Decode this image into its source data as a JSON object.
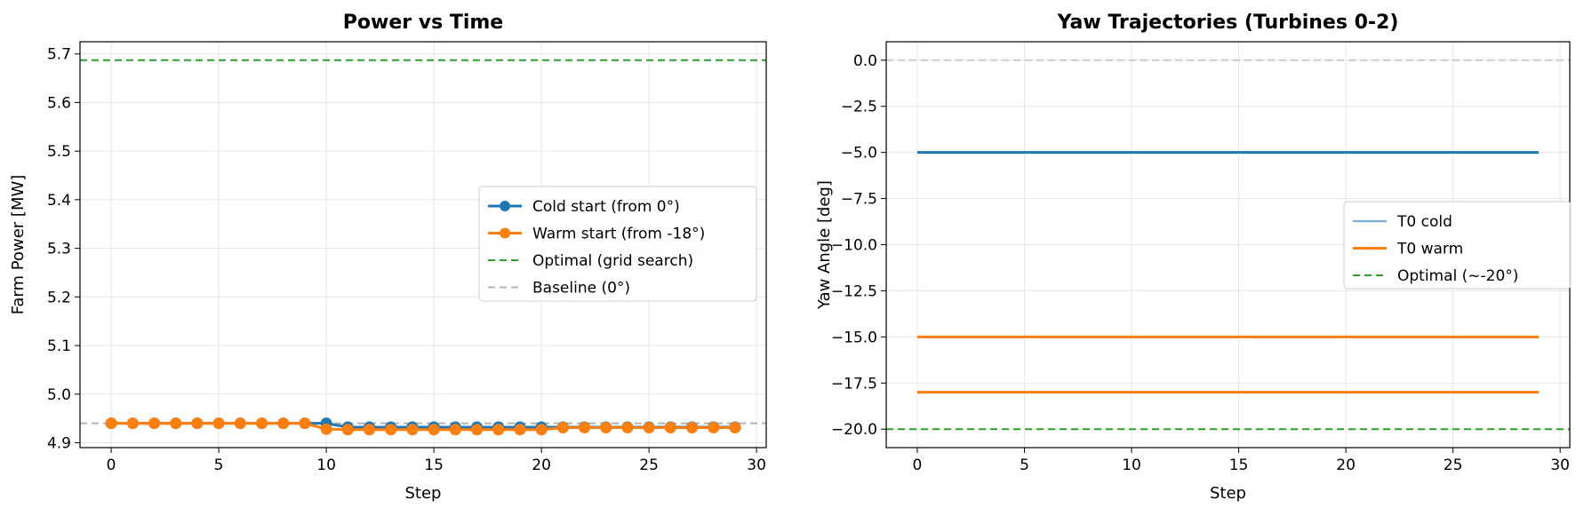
{
  "chart_data": [
    {
      "type": "line",
      "title": "Power vs Time",
      "xlabel": "Step",
      "ylabel": "Farm Power [MW]",
      "xlim": [
        -1.45,
        30.45
      ],
      "ylim": [
        4.89,
        5.725
      ],
      "xticks": [
        "0",
        "5",
        "10",
        "15",
        "20",
        "25",
        "30"
      ],
      "yticks": [
        "4.9",
        "5.0",
        "5.1",
        "5.2",
        "5.3",
        "5.4",
        "5.5",
        "5.6",
        "5.7"
      ],
      "grid": true,
      "legend_position": "center-right",
      "x": [
        0,
        1,
        2,
        3,
        4,
        5,
        6,
        7,
        8,
        9,
        10,
        11,
        12,
        13,
        14,
        15,
        16,
        17,
        18,
        19,
        20,
        21,
        22,
        23,
        24,
        25,
        26,
        27,
        28,
        29
      ],
      "series": [
        {
          "name": "Cold start (from 0°)",
          "color": "#1f77b4",
          "style": "line-marker",
          "values": [
            4.94,
            4.94,
            4.94,
            4.94,
            4.94,
            4.94,
            4.94,
            4.94,
            4.94,
            4.94,
            4.94,
            4.932,
            4.932,
            4.932,
            4.932,
            4.932,
            4.932,
            4.932,
            4.932,
            4.932,
            4.932,
            4.932,
            4.932,
            4.932,
            4.932,
            4.932,
            4.932,
            4.932,
            4.932,
            4.932
          ]
        },
        {
          "name": "Warm start (from -18°)",
          "color": "#ff7f0e",
          "style": "line-marker",
          "values": [
            4.94,
            4.94,
            4.94,
            4.94,
            4.94,
            4.94,
            4.94,
            4.94,
            4.94,
            4.94,
            4.928,
            4.927,
            4.927,
            4.927,
            4.927,
            4.927,
            4.927,
            4.927,
            4.927,
            4.927,
            4.927,
            4.931,
            4.931,
            4.931,
            4.931,
            4.931,
            4.931,
            4.931,
            4.931,
            4.931
          ]
        }
      ],
      "reference_lines": [
        {
          "name": "Optimal (grid search)",
          "value": 5.687,
          "color": "#2ca02c"
        },
        {
          "name": "Baseline (0°)",
          "value": 4.94,
          "color": "#b3b3b3"
        }
      ]
    },
    {
      "type": "line",
      "title": "Yaw Trajectories (Turbines 0-2)",
      "xlabel": "Step",
      "ylabel": "Yaw Angle [deg]",
      "xlim": [
        -1.45,
        30.45
      ],
      "ylim": [
        -21,
        1
      ],
      "xticks": [
        "0",
        "5",
        "10",
        "15",
        "20",
        "25",
        "30"
      ],
      "yticks": [
        "0.0",
        "−2.5",
        "−5.0",
        "−7.5",
        "−10.0",
        "−12.5",
        "−15.0",
        "−17.5",
        "−20.0"
      ],
      "grid": true,
      "legend_position": "center-right",
      "x": [
        0,
        29
      ],
      "series": [
        {
          "name": "T0 cold",
          "color": "#1f77b4",
          "values": [
            -5,
            -5
          ]
        },
        {
          "name": "T0 warm",
          "color": "#ff7f0e",
          "values": [
            -15,
            -15
          ]
        },
        {
          "color": "#ff7f0e",
          "values": [
            -18,
            -18
          ]
        }
      ],
      "reference_lines": [
        {
          "name": "Optimal (~-20°)",
          "value": -20,
          "color": "#2ca02c"
        },
        {
          "value": 0,
          "color": "#cccccc"
        }
      ]
    }
  ]
}
